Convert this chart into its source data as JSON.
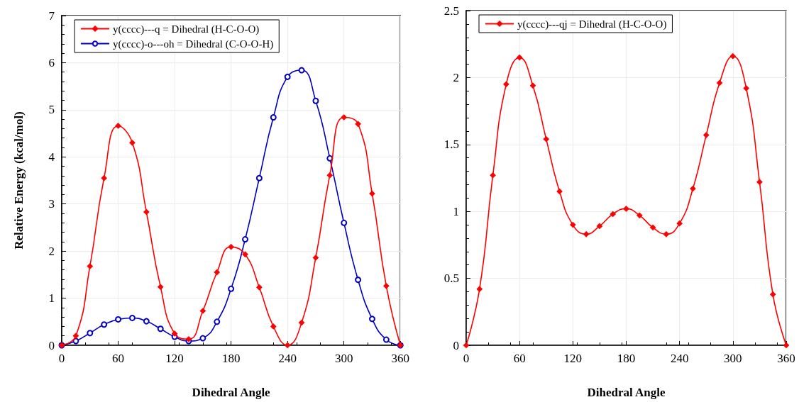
{
  "chart_data": [
    {
      "type": "line",
      "xlabel": "Dihedral Angle",
      "ylabel": "Relative Energy (kcal/mol)",
      "x": [
        0,
        15,
        30,
        45,
        60,
        75,
        90,
        105,
        120,
        135,
        150,
        165,
        180,
        195,
        210,
        225,
        240,
        255,
        270,
        285,
        300,
        315,
        330,
        345,
        360
      ],
      "series": [
        {
          "name": "y(cccc)---q = Dihedral (H-C-O-O)",
          "color": "#ff0000",
          "marker": "diamond",
          "values": [
            0,
            0.2,
            1.68,
            3.55,
            4.66,
            4.3,
            2.83,
            1.24,
            0.25,
            0.13,
            0.73,
            1.55,
            2.09,
            1.93,
            1.23,
            0.4,
            0,
            0.48,
            1.86,
            3.61,
            4.84,
            4.7,
            3.22,
            1.26,
            0
          ]
        },
        {
          "name": "y(cccc)-o---oh = Dihedral (C-O-O-H)",
          "color": "#0000c0",
          "marker": "circle",
          "values": [
            0,
            0.09,
            0.26,
            0.44,
            0.55,
            0.58,
            0.51,
            0.35,
            0.18,
            0.09,
            0.15,
            0.5,
            1.2,
            2.25,
            3.55,
            4.84,
            5.7,
            5.84,
            5.19,
            3.97,
            2.6,
            1.39,
            0.56,
            0.12,
            0
          ]
        }
      ],
      "xlim": [
        0,
        360
      ],
      "xticks": [
        0,
        60,
        120,
        180,
        240,
        300,
        360
      ],
      "ylim": [
        0,
        7
      ],
      "yticks": [
        0,
        1,
        2,
        3,
        4,
        5,
        6,
        7
      ],
      "grid": true,
      "legend": "top left",
      "line_style": "solid"
    },
    {
      "type": "line",
      "xlabel": "Dihedral Angle",
      "x": [
        0,
        15,
        30,
        45,
        60,
        75,
        90,
        105,
        120,
        135,
        150,
        165,
        180,
        195,
        210,
        225,
        240,
        255,
        270,
        285,
        300,
        315,
        330,
        345,
        360
      ],
      "series": [
        {
          "name": "y(cccc)---qj = Dihedral (H-C-O-O)",
          "color": "#ff0000",
          "marker": "diamond",
          "values": [
            0,
            0.42,
            1.27,
            1.95,
            2.15,
            1.94,
            1.54,
            1.15,
            0.9,
            0.83,
            0.89,
            0.98,
            1.02,
            0.97,
            0.88,
            0.83,
            0.91,
            1.17,
            1.57,
            1.96,
            2.16,
            1.92,
            1.22,
            0.38,
            0
          ]
        }
      ],
      "xlim": [
        0,
        360
      ],
      "xticks": [
        0,
        60,
        120,
        180,
        240,
        300,
        360
      ],
      "ylim": [
        0,
        2.5
      ],
      "yticks": [
        0,
        0.5,
        1,
        1.5,
        2,
        2.5
      ],
      "grid": true,
      "legend": "top left",
      "line_style": "solid"
    }
  ]
}
